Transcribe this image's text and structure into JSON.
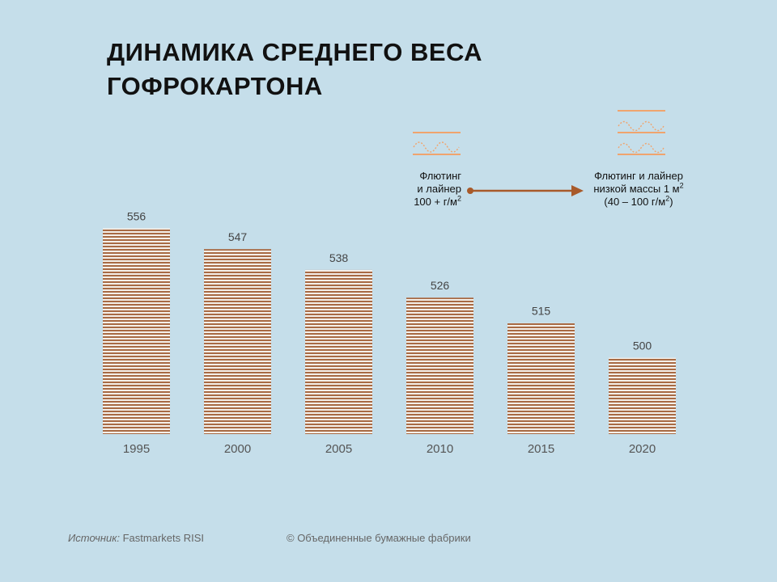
{
  "title": {
    "line1": "ДИНАМИКА СРЕДНЕГО ВЕСА",
    "line2": "ГОФРОКАРТОНА"
  },
  "colors": {
    "background": "#c5deea",
    "bar_stripe": "#a86a44",
    "bar_gap": "#f4efe9",
    "icon": "#f0a46e",
    "arrow": "#a85a2a"
  },
  "legend": {
    "left": {
      "line1": "Флютинг",
      "line2": "и лайнер",
      "line3_text": "100 + г/м",
      "line3_sup": "2"
    },
    "right": {
      "line1": "Флютинг и лайнер",
      "line2_text": "низкой массы 1 м",
      "line2_sup": "2",
      "line3_text": "(40 – 100 г/м",
      "line3_sup": "2",
      "line3_end": ")"
    }
  },
  "chart_data": {
    "type": "bar",
    "categories": [
      "1995",
      "2000",
      "2005",
      "2010",
      "2015",
      "2020"
    ],
    "values": [
      556,
      547,
      538,
      526,
      515,
      500
    ],
    "title": "ДИНАМИКА СРЕДНЕГО ВЕСА ГОФРОКАРТОНА",
    "xlabel": "",
    "ylabel": "",
    "ylim": [
      467,
      560
    ],
    "grid": false,
    "legend": "none"
  },
  "footer": {
    "source_label": "Источник:",
    "source_value": " Fastmarkets RISI",
    "copyright": "© Объединенные бумажные фабрики"
  }
}
